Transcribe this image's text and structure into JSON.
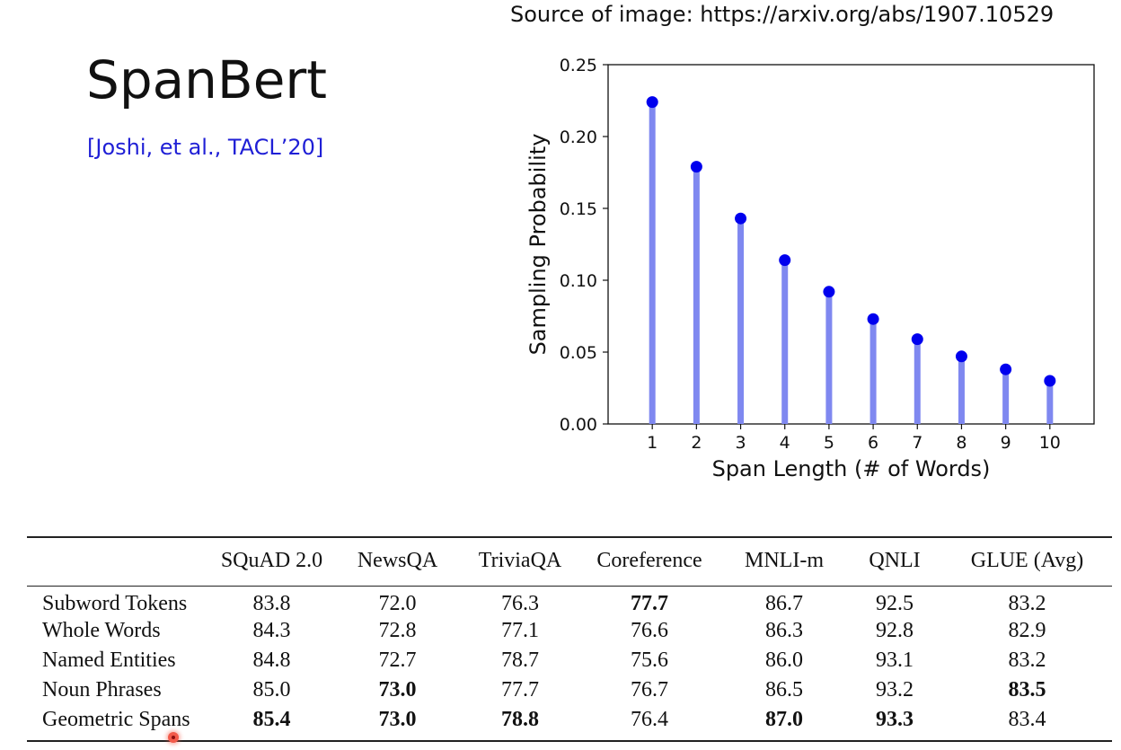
{
  "source_text": "Source of image: https://arxiv.org/abs/1907.10529",
  "title": "SpanBert",
  "citation": "[Joshi, et al., TACL’20]",
  "chart_data": {
    "type": "stem",
    "x": [
      1,
      2,
      3,
      4,
      5,
      6,
      7,
      8,
      9,
      10
    ],
    "values": [
      0.224,
      0.179,
      0.143,
      0.114,
      0.092,
      0.073,
      0.059,
      0.047,
      0.038,
      0.03
    ],
    "xlabel": "Span Length (# of Words)",
    "ylabel": "Sampling Probability",
    "xlim": [
      0,
      11
    ],
    "ylim": [
      0,
      0.25
    ],
    "yticks": [
      "0.00",
      "0.05",
      "0.10",
      "0.15",
      "0.20",
      "0.25"
    ],
    "xticks": [
      "1",
      "2",
      "3",
      "4",
      "5",
      "6",
      "7",
      "8",
      "9",
      "10"
    ],
    "stem_color": "#7f88f0",
    "marker_color": "#0000ee"
  },
  "table": {
    "columns": [
      "",
      "SQuAD 2.0",
      "NewsQA",
      "TriviaQA",
      "Coreference",
      "MNLI-m",
      "QNLI",
      "GLUE (Avg)"
    ],
    "rows": [
      {
        "label": "Subword Tokens",
        "cells": [
          "83.8",
          "72.0",
          "76.3",
          "77.7",
          "86.7",
          "92.5",
          "83.2"
        ],
        "bold": [
          false,
          false,
          false,
          true,
          false,
          false,
          false
        ]
      },
      {
        "label": "Whole Words",
        "cells": [
          "84.3",
          "72.8",
          "77.1",
          "76.6",
          "86.3",
          "92.8",
          "82.9"
        ],
        "bold": [
          false,
          false,
          false,
          false,
          false,
          false,
          false
        ]
      },
      {
        "label": "Named Entities",
        "cells": [
          "84.8",
          "72.7",
          "78.7",
          "75.6",
          "86.0",
          "93.1",
          "83.2"
        ],
        "bold": [
          false,
          false,
          false,
          false,
          false,
          false,
          false
        ]
      },
      {
        "label": "Noun Phrases",
        "cells": [
          "85.0",
          "73.0",
          "77.7",
          "76.7",
          "86.5",
          "93.2",
          "83.5"
        ],
        "bold": [
          false,
          true,
          false,
          false,
          false,
          false,
          true
        ]
      },
      {
        "label": "Geometric Spans",
        "cells": [
          "85.4",
          "73.0",
          "78.8",
          "76.4",
          "87.0",
          "93.3",
          "83.4"
        ],
        "bold": [
          true,
          true,
          true,
          false,
          true,
          true,
          false
        ]
      }
    ]
  }
}
